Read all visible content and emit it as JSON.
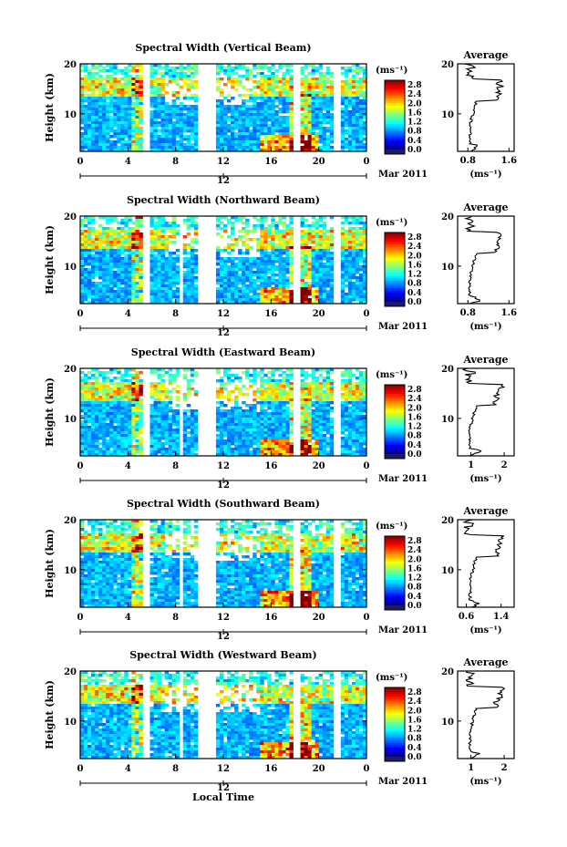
{
  "figure": {
    "xlabel": "Local Time"
  },
  "chart_data": [
    {
      "type": "heatmap",
      "title": "Spectral Width (Vertical Beam)",
      "ylabel": "Height (km)",
      "x_ticks": [
        "0",
        "4",
        "8",
        "12",
        "16",
        "20",
        "0"
      ],
      "xlim": [
        0,
        24
      ],
      "y_ticks": [
        "20",
        "10"
      ],
      "ylim": [
        2.5,
        20
      ],
      "date_tick": "12",
      "date_label": "Mar 2011",
      "colorbar": {
        "unit": "(ms⁻¹)",
        "labels": [
          "2.8",
          "2.4",
          "2.0",
          "1.6",
          "1.2",
          "0.8",
          "0.4",
          "0.0"
        ],
        "range": [
          0.0,
          3.0
        ]
      },
      "gaps_hours": [
        5.4,
        5.6,
        10.1,
        10.5,
        11.0,
        11.3,
        18.0,
        18.3,
        21.4,
        21.7
      ],
      "profile": {
        "title": "Average",
        "xlabel": "(ms⁻¹)",
        "x_ticks": [
          "0.8",
          "1.6"
        ],
        "xlim": [
          0.6,
          1.7
        ],
        "y_ticks": [
          "20",
          "10"
        ]
      }
    },
    {
      "type": "heatmap",
      "title": "Spectral Width (Northward Beam)",
      "ylabel": "Height (km)",
      "x_ticks": [
        "0",
        "4",
        "8",
        "12",
        "16",
        "20",
        "0"
      ],
      "xlim": [
        0,
        24
      ],
      "y_ticks": [
        "20",
        "10"
      ],
      "ylim": [
        2.5,
        20
      ],
      "date_tick": "12",
      "date_label": "Mar 2011",
      "colorbar": {
        "unit": "(ms⁻¹)",
        "labels": [
          "2.8",
          "2.4",
          "2.0",
          "1.6",
          "1.2",
          "0.8",
          "0.4",
          "0.0"
        ],
        "range": [
          0.0,
          3.0
        ]
      },
      "gaps_hours": [
        5.4,
        5.6,
        8.3,
        8.6,
        10.1,
        10.5,
        11.0,
        11.3,
        18.0,
        18.3,
        21.4,
        21.7
      ],
      "profile": {
        "title": "Average",
        "xlabel": "(ms⁻¹)",
        "x_ticks": [
          "0.8",
          "1.6"
        ],
        "xlim": [
          0.6,
          1.7
        ],
        "y_ticks": [
          "20",
          "10"
        ]
      }
    },
    {
      "type": "heatmap",
      "title": "Spectral Width (Eastward Beam)",
      "ylabel": "Height (km)",
      "x_ticks": [
        "0",
        "4",
        "8",
        "12",
        "16",
        "20",
        "0"
      ],
      "xlim": [
        0,
        24
      ],
      "y_ticks": [
        "20",
        "10"
      ],
      "ylim": [
        2.5,
        20
      ],
      "date_tick": "12",
      "date_label": "Mar 2011",
      "colorbar": {
        "unit": "(ms⁻¹)",
        "labels": [
          "2.8",
          "2.4",
          "2.0",
          "1.6",
          "1.2",
          "0.8",
          "0.4",
          "0.0"
        ],
        "range": [
          0.0,
          3.0
        ]
      },
      "gaps_hours": [
        5.4,
        5.6,
        8.3,
        8.6,
        10.1,
        10.5,
        11.0,
        11.3,
        18.0,
        18.3,
        21.4,
        21.7
      ],
      "profile": {
        "title": "Average",
        "xlabel": "(ms⁻¹)",
        "x_ticks": [
          "1",
          "2"
        ],
        "xlim": [
          0.6,
          2.3
        ],
        "y_ticks": [
          "20",
          "10"
        ]
      }
    },
    {
      "type": "heatmap",
      "title": "Spectral Width (Southward Beam)",
      "ylabel": "Height (km)",
      "x_ticks": [
        "0",
        "4",
        "8",
        "12",
        "16",
        "20",
        "0"
      ],
      "xlim": [
        0,
        24
      ],
      "y_ticks": [
        "20",
        "10"
      ],
      "ylim": [
        2.5,
        20
      ],
      "date_tick": "12",
      "date_label": "Mar 2011",
      "colorbar": {
        "unit": "(ms⁻¹)",
        "labels": [
          "2.8",
          "2.4",
          "2.0",
          "1.6",
          "1.2",
          "0.8",
          "0.4",
          "0.0"
        ],
        "range": [
          0.0,
          3.0
        ]
      },
      "gaps_hours": [
        5.4,
        5.6,
        8.3,
        8.6,
        10.1,
        10.5,
        11.0,
        11.3,
        18.0,
        18.3,
        21.4,
        21.7
      ],
      "profile": {
        "title": "Average",
        "xlabel": "(ms⁻¹)",
        "x_ticks": [
          "0.6",
          "1.4"
        ],
        "xlim": [
          0.4,
          1.7
        ],
        "y_ticks": [
          "20",
          "10"
        ]
      }
    },
    {
      "type": "heatmap",
      "title": "Spectral Width (Westward Beam)",
      "ylabel": "Height (km)",
      "x_ticks": [
        "0",
        "4",
        "8",
        "12",
        "16",
        "20",
        "0"
      ],
      "xlim": [
        0,
        24
      ],
      "y_ticks": [
        "20",
        "10"
      ],
      "ylim": [
        2.5,
        20
      ],
      "date_tick": "12",
      "date_label": "Mar 2011",
      "colorbar": {
        "unit": "(ms⁻¹)",
        "labels": [
          "2.8",
          "2.4",
          "2.0",
          "1.6",
          "1.2",
          "0.8",
          "0.4",
          "0.0"
        ],
        "range": [
          0.0,
          3.0
        ]
      },
      "gaps_hours": [
        5.4,
        5.6,
        8.3,
        8.6,
        10.1,
        10.5,
        11.0,
        11.3,
        18.0,
        18.3,
        21.4,
        21.7
      ],
      "profile": {
        "title": "Average",
        "xlabel": "(ms⁻¹)",
        "x_ticks": [
          "1",
          "2"
        ],
        "xlim": [
          0.6,
          2.3
        ],
        "y_ticks": [
          "20",
          "10"
        ]
      }
    }
  ]
}
